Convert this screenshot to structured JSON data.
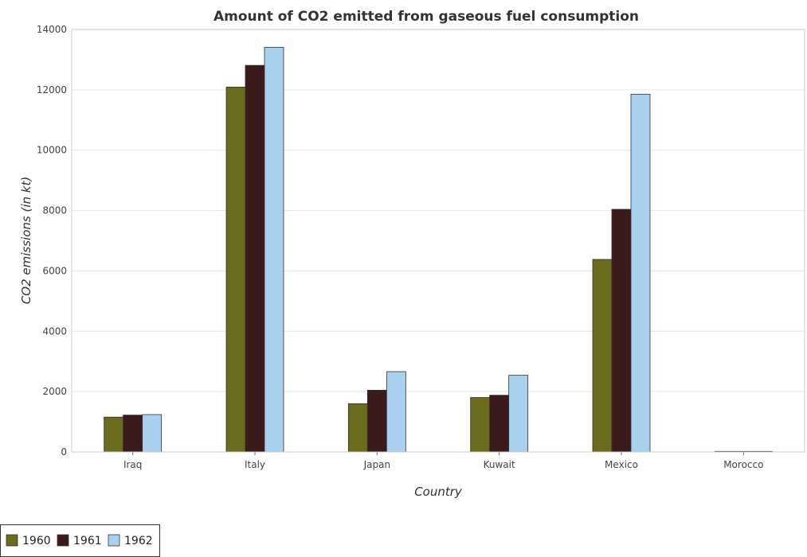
{
  "chart_data": {
    "type": "bar",
    "title": "Amount of CO2 emitted from gaseous fuel consumption",
    "xlabel": "Country",
    "ylabel": "CO2 emissions (in kt)",
    "categories": [
      "Iraq",
      "Italy",
      "Japan",
      "Kuwait",
      "Mexico",
      "Morocco"
    ],
    "series": [
      {
        "name": "1960",
        "color": "#6b6b1e",
        "values": [
          1155,
          12090,
          1600,
          1805,
          6380,
          18
        ]
      },
      {
        "name": "1961",
        "color": "#3a1a1a",
        "values": [
          1222,
          12810,
          2046,
          1880,
          8040,
          18
        ]
      },
      {
        "name": "1962",
        "color": "#a9d0ec",
        "values": [
          1239,
          13410,
          2662,
          2541,
          11855,
          18
        ]
      }
    ],
    "ylim": [
      0,
      14000
    ],
    "yticks": [
      0,
      2000,
      4000,
      6000,
      8000,
      10000,
      12000,
      14000
    ],
    "grid": true,
    "legend": "bottom-left"
  }
}
